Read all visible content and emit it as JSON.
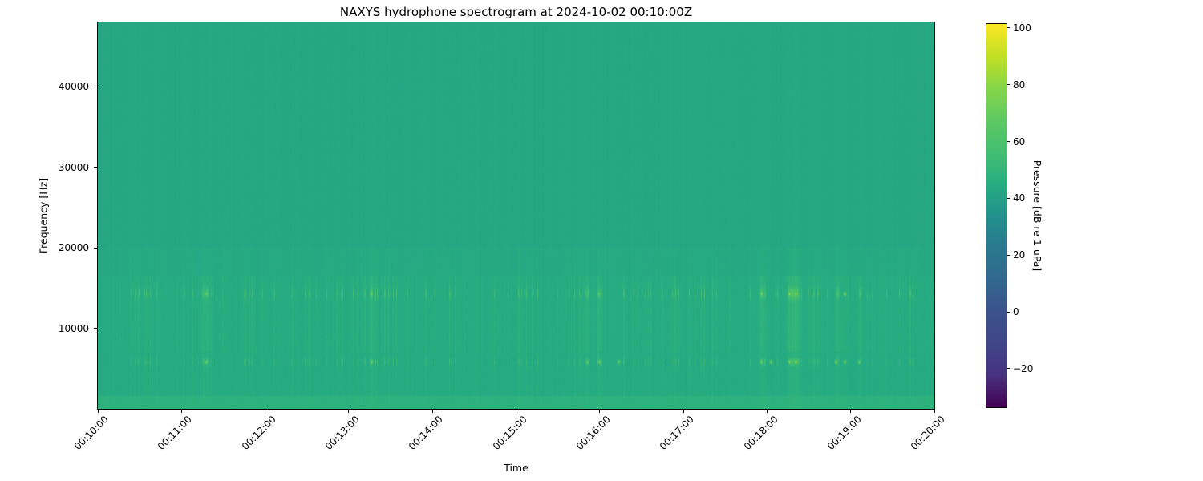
{
  "chart_data": {
    "type": "heatmap",
    "subtype": "spectrogram",
    "title": "NAXYS hydrophone spectrogram at 2024-10-02 00:10:00Z",
    "xlabel": "Time",
    "ylabel": "Frequency [Hz]",
    "x_tick_labels": [
      "00:10:00",
      "00:11:00",
      "00:12:00",
      "00:13:00",
      "00:14:00",
      "00:15:00",
      "00:16:00",
      "00:17:00",
      "00:18:00",
      "00:19:00",
      "00:20:00"
    ],
    "y_tick_values": [
      10000,
      20000,
      30000,
      40000
    ],
    "freq_range_hz": [
      0,
      48000
    ],
    "time_range": [
      "00:10:00",
      "00:20:00"
    ],
    "grid": false,
    "colorbar": {
      "label": "Pressure [dB re 1 uPa]",
      "tick_values": [
        100,
        80,
        60,
        40,
        20,
        0,
        -20
      ],
      "range_db": [
        -33.6,
        101.4
      ],
      "colormap": "viridis",
      "position": "right"
    },
    "base_color_hex": "#21a386",
    "render": {
      "seed": 11,
      "base_db": 43,
      "bottom_band": {
        "max_hz": 1500,
        "boost_db": 3.8
      },
      "broadband_wash": [
        {
          "max_hz": 16500,
          "boost_db": 1.0
        },
        {
          "max_hz": 20000,
          "boost_db": 0.5
        }
      ],
      "striation_envelope": [
        {
          "max_hz": 1500,
          "gain": 0.3
        },
        {
          "max_hz": 7000,
          "gain": 0.55
        },
        {
          "max_hz": 16500,
          "gain": 1.0
        },
        {
          "max_hz": 20000,
          "gain": 0.35
        },
        {
          "max_hz": 48000,
          "gain": 0.12
        }
      ],
      "tonal_bands_hz": [
        5800,
        14300
      ],
      "streaks": [
        {
          "t": 0.13,
          "w": 2.0,
          "a": 3.5
        },
        {
          "t": 0.327,
          "w": 2.0,
          "a": 4.0
        },
        {
          "t": 0.585,
          "w": 1.5,
          "a": 3.0
        },
        {
          "t": 0.6,
          "w": 1.5,
          "a": 3.5
        },
        {
          "t": 0.794,
          "w": 2.0,
          "a": 4.0
        },
        {
          "t": 0.827,
          "w": 2.0,
          "a": 5.0
        },
        {
          "t": 0.835,
          "w": 3.0,
          "a": 6.0
        },
        {
          "t": 0.885,
          "w": 2.0,
          "a": 3.5
        },
        {
          "t": 0.911,
          "w": 1.5,
          "a": 3.0
        }
      ],
      "transients": [
        {
          "t": 0.13,
          "f": 5800,
          "db": 76
        },
        {
          "t": 0.13,
          "f": 14300,
          "db": 72
        },
        {
          "t": 0.327,
          "f": 5800,
          "db": 78
        },
        {
          "t": 0.327,
          "f": 14300,
          "db": 74
        },
        {
          "t": 0.585,
          "f": 5800,
          "db": 74
        },
        {
          "t": 0.6,
          "f": 5800,
          "db": 76
        },
        {
          "t": 0.6,
          "f": 14300,
          "db": 70
        },
        {
          "t": 0.623,
          "f": 5800,
          "db": 72
        },
        {
          "t": 0.794,
          "f": 5800,
          "db": 75
        },
        {
          "t": 0.794,
          "f": 14300,
          "db": 78
        },
        {
          "t": 0.805,
          "f": 5800,
          "db": 72
        },
        {
          "t": 0.827,
          "f": 5800,
          "db": 80
        },
        {
          "t": 0.827,
          "f": 14300,
          "db": 82
        },
        {
          "t": 0.835,
          "f": 5800,
          "db": 85
        },
        {
          "t": 0.835,
          "f": 14300,
          "db": 80
        },
        {
          "t": 0.883,
          "f": 5800,
          "db": 78
        },
        {
          "t": 0.893,
          "f": 5800,
          "db": 75
        },
        {
          "t": 0.893,
          "f": 14300,
          "db": 74
        },
        {
          "t": 0.911,
          "f": 5800,
          "db": 72
        }
      ]
    }
  }
}
